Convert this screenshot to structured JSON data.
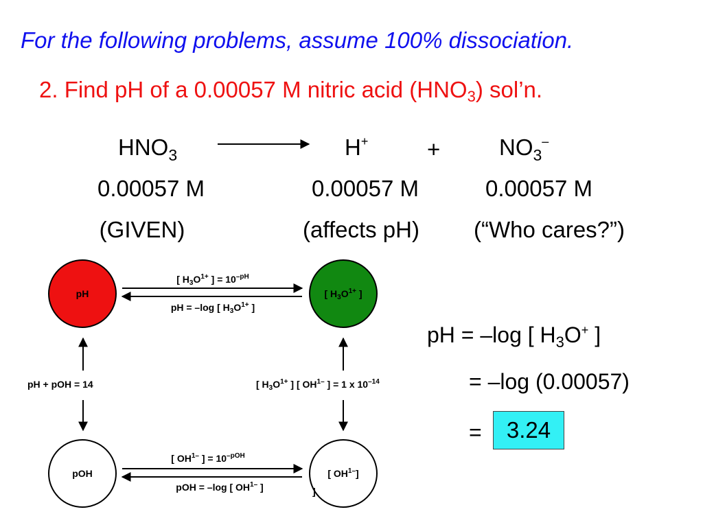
{
  "title": "For the following problems, assume 100% dissociation.",
  "problem": {
    "text_before": "2.  Find pH of a 0.00057 M nitric acid (HNO",
    "sub": "3",
    "text_after": ") sol’n."
  },
  "reaction": {
    "reactant": {
      "base": "HNO",
      "sub": "3"
    },
    "product1": {
      "base": "H",
      "sup": "+"
    },
    "plus": "+",
    "product2": {
      "base": "NO",
      "sub": "3",
      "sup": "–"
    }
  },
  "concentrations": [
    "0.00057 M",
    "0.00057 M",
    "0.00057 M"
  ],
  "notes": [
    "(GIVEN)",
    "(affects pH)",
    "(“Who cares?”)"
  ],
  "diagram": {
    "circles": {
      "ph": {
        "label": "pH",
        "color": "#ee1111"
      },
      "h3o": {
        "label_a": "[ H",
        "sub": "3",
        "label_b": "O",
        "sup": "1+",
        "label_c": " ]",
        "color": "#118811"
      },
      "poh": {
        "label": "pOH",
        "color": "#ffffff"
      },
      "oh": {
        "label_a": "[ OH",
        "sup": "1–",
        "label_b": "]",
        "overflow": "]",
        "color": "#ffffff"
      }
    },
    "top_arrow_upper": {
      "a": "[ H",
      "sub": "3",
      "b": "O",
      "sup1": "1+",
      "c": " ] = 10",
      "sup2": "–pH"
    },
    "top_arrow_lower": {
      "a": "pH = –log [ H",
      "sub": "3",
      "b": "O",
      "sup": "1+",
      "c": " ]"
    },
    "left_relation": "pH  +  pOH  =  14",
    "right_relation": {
      "a": "[ H",
      "sub": "3",
      "b": "O",
      "sup1": "1+",
      "c": " ] [ OH",
      "sup2": "1–",
      "d": " ] = 1 x 10",
      "sup3": "–14"
    },
    "bottom_arrow_upper": {
      "a": "[ OH",
      "sup1": "1–",
      "b": " ] = 10",
      "sup2": "–pOH"
    },
    "bottom_arrow_lower": {
      "a": "pOH = –log [ OH",
      "sup": "1–",
      "b": " ]"
    }
  },
  "calculation": {
    "line1": {
      "a": "pH = –log [ H",
      "sub": "3",
      "b": "O",
      "sup": "+",
      "c": " ]"
    },
    "line2": "= –log (0.00057)",
    "line3_eq": "=",
    "answer": "3.24",
    "answer_color": "#33f0f5"
  }
}
